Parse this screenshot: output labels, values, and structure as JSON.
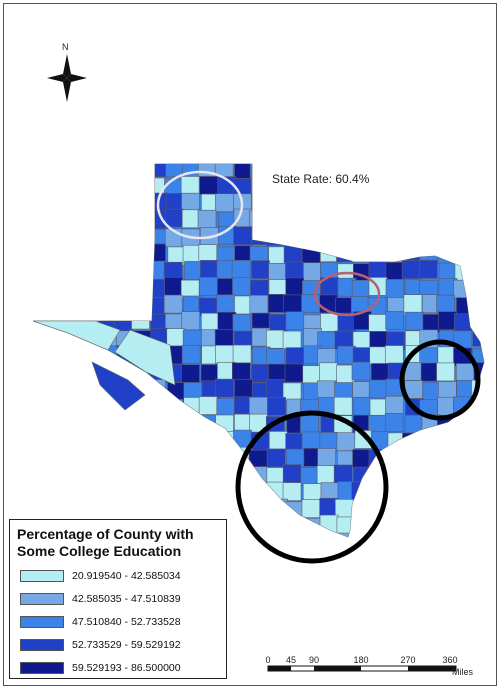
{
  "annotation": {
    "state_rate": "State Rate: 60.4%"
  },
  "north_arrow": {
    "label": "N",
    "icon": "north-arrow-icon"
  },
  "legend": {
    "title_line1": "Percentage of County with",
    "title_line2": "Some College Education",
    "classes": [
      {
        "label": "20.919540 - 42.585034",
        "color": "#b4eef3"
      },
      {
        "label": "42.585035 - 47.510839",
        "color": "#74a9e6"
      },
      {
        "label": "47.510840 - 52.733528",
        "color": "#3b82e9"
      },
      {
        "label": "52.733529 - 59.529192",
        "color": "#2040c8"
      },
      {
        "label": "59.529193 - 86.500000",
        "color": "#101a8f"
      }
    ]
  },
  "scale_bar": {
    "ticks": [
      "0",
      "45",
      "90",
      "180",
      "270",
      "360"
    ],
    "units": "Miles"
  },
  "highlight_colors": {
    "panhandle": "#e6e6f2",
    "dallas": "#b8606e",
    "south": "#000000",
    "houston": "#000000"
  }
}
